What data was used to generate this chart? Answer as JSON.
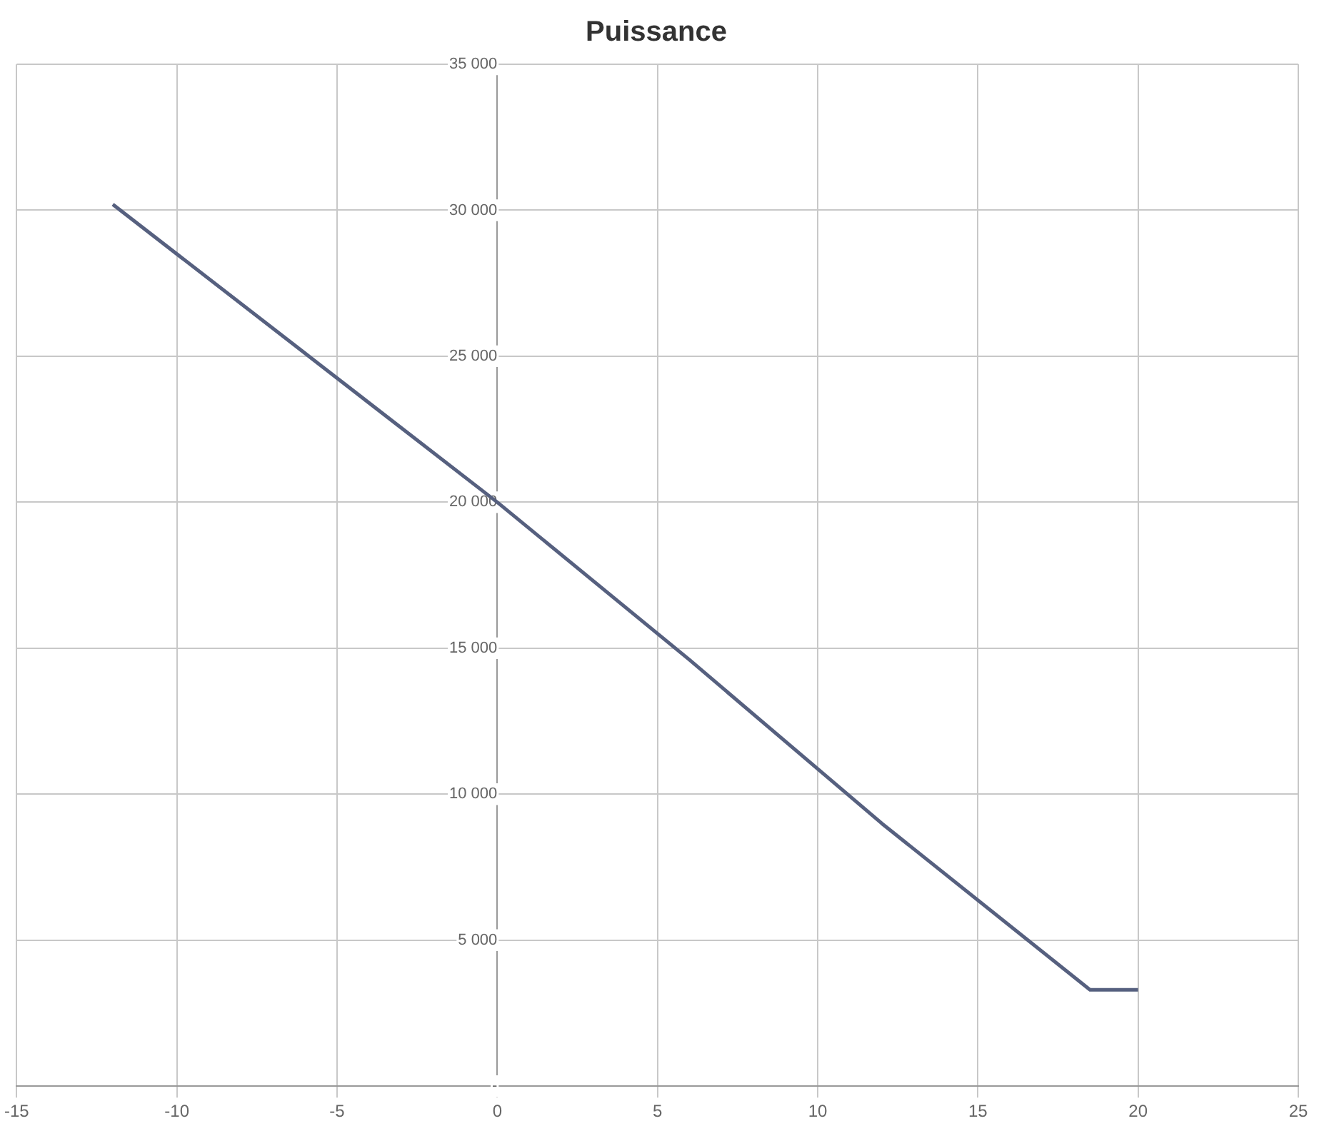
{
  "chart_data": {
    "type": "line",
    "title": "Puissance",
    "series": [
      {
        "color": "#56607f",
        "x": [
          -12,
          -6,
          0,
          6,
          12,
          18.5,
          20
        ],
        "values": [
          30200,
          25100,
          20000,
          14600,
          9000,
          3300,
          3300
        ]
      }
    ],
    "xlim": [
      -15,
      25
    ],
    "xticks": [
      -15,
      -10,
      -5,
      0,
      5,
      10,
      15,
      20,
      25
    ],
    "ylim": [
      0,
      35000
    ],
    "yticks": [
      {
        "value": 0,
        "label": "-"
      },
      {
        "value": 5000,
        "label": "5 000"
      },
      {
        "value": 10000,
        "label": "10 000"
      },
      {
        "value": 15000,
        "label": "15 000"
      },
      {
        "value": 20000,
        "label": "20 000"
      },
      {
        "value": 25000,
        "label": "25 000"
      },
      {
        "value": 30000,
        "label": "30 000"
      },
      {
        "value": 35000,
        "label": "35 000"
      }
    ],
    "grid": true,
    "marker": "none",
    "line_style": "solid",
    "legend": false
  }
}
